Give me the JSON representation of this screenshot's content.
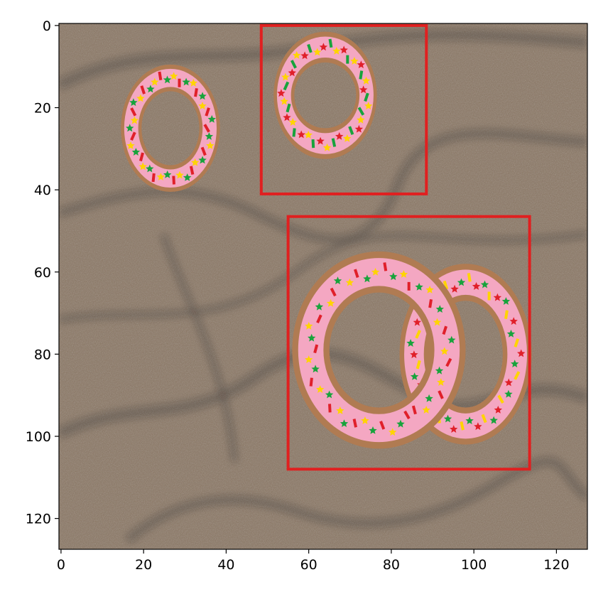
{
  "image": {
    "description_kind": "sand texture with overlaid pink sprinkled donuts and red bounding boxes",
    "size_data_units": [
      128,
      128
    ],
    "sand_colors": {
      "base": "#8a7560",
      "light": "#a89478",
      "dark": "#1a1410"
    },
    "donut_colors": {
      "dough": "#b07b52",
      "icing": "#f4a7c2"
    },
    "sprinkle_colors": [
      "#e0202a",
      "#18a33c",
      "#ffd400"
    ],
    "box_color": "#e02020"
  },
  "donuts": [
    {
      "cx": 26.5,
      "cy": 25,
      "rx_outer": 12,
      "ry_outer": 15.5,
      "rx_inner": 7,
      "ry_inner": 9
    },
    {
      "cx": 64,
      "cy": 17,
      "rx_outer": 12.5,
      "ry_outer": 15.5,
      "rx_inner": 7.5,
      "ry_inner": 8
    },
    {
      "cx": 98,
      "cy": 80,
      "rx_outer": 16,
      "ry_outer": 22,
      "rx_inner": 9,
      "ry_inner": 13
    },
    {
      "cx": 77,
      "cy": 79,
      "rx_outer": 21,
      "ry_outer": 24,
      "rx_inner": 12,
      "ry_inner": 14
    }
  ],
  "boxes": [
    {
      "x0": 49,
      "y0": 0.5,
      "x1": 89,
      "y1": 41.5
    },
    {
      "x0": 55.5,
      "y0": 47,
      "x1": 114,
      "y1": 108.5
    }
  ],
  "axes": {
    "x_ticks": [
      0,
      20,
      40,
      60,
      80,
      100,
      120
    ],
    "y_ticks": [
      0,
      20,
      40,
      60,
      80,
      100,
      120
    ],
    "x_tick_labels": [
      "0",
      "20",
      "40",
      "60",
      "80",
      "100",
      "120"
    ],
    "y_tick_labels": [
      "0",
      "20",
      "40",
      "60",
      "80",
      "100",
      "120"
    ]
  }
}
